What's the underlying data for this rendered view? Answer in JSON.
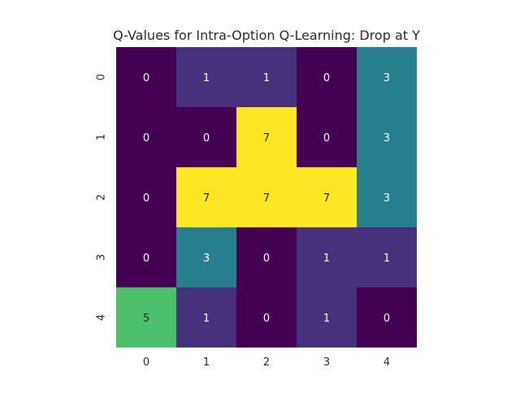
{
  "chart_data": {
    "type": "heatmap",
    "title": "Q-Values for Intra-Option Q-Learning: Drop at Y",
    "xlabel": "",
    "ylabel": "",
    "x_tick_labels": [
      "0",
      "1",
      "2",
      "3",
      "4"
    ],
    "y_tick_labels": [
      "0",
      "1",
      "2",
      "3",
      "4"
    ],
    "values": [
      [
        0,
        1,
        1,
        0,
        3
      ],
      [
        0,
        0,
        7,
        0,
        3
      ],
      [
        0,
        7,
        7,
        7,
        3
      ],
      [
        0,
        3,
        0,
        1,
        1
      ],
      [
        5,
        1,
        0,
        1,
        0
      ]
    ],
    "colormap": "viridis",
    "vmin": 0,
    "vmax": 7,
    "annotations": true,
    "colorbar": false,
    "grid": false
  }
}
